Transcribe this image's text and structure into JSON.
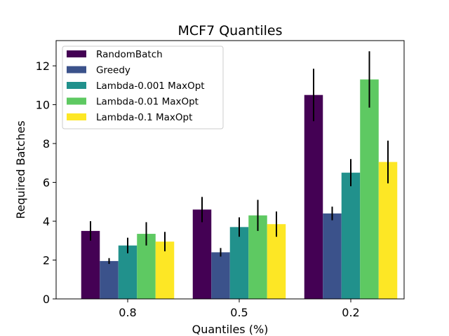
{
  "chart_data": {
    "type": "bar",
    "title": "MCF7 Quantiles",
    "xlabel": "Quantiles (%)",
    "ylabel": "Required Batches",
    "categories": [
      "0.8",
      "0.5",
      "0.2"
    ],
    "ylim": [
      0,
      13.3
    ],
    "yticks": [
      0,
      2,
      4,
      6,
      8,
      10,
      12
    ],
    "grid": false,
    "legend_position": "top-left",
    "series": [
      {
        "name": "RandomBatch",
        "color": "#440154",
        "values": [
          3.5,
          4.6,
          10.5
        ],
        "errors": [
          0.5,
          0.65,
          1.35
        ]
      },
      {
        "name": "Greedy",
        "color": "#3b528b",
        "values": [
          1.95,
          2.4,
          4.4
        ],
        "errors": [
          0.15,
          0.22,
          0.35
        ]
      },
      {
        "name": "Lambda-0.001 MaxOpt",
        "color": "#21918c",
        "values": [
          2.75,
          3.7,
          6.5
        ],
        "errors": [
          0.4,
          0.5,
          0.7
        ]
      },
      {
        "name": "Lambda-0.01 MaxOpt",
        "color": "#5ec962",
        "values": [
          3.35,
          4.3,
          11.3
        ],
        "errors": [
          0.6,
          0.8,
          1.45
        ]
      },
      {
        "name": "Lambda-0.1 MaxOpt",
        "color": "#fde725",
        "values": [
          2.95,
          3.85,
          7.05
        ],
        "errors": [
          0.5,
          0.65,
          1.1
        ]
      }
    ]
  }
}
